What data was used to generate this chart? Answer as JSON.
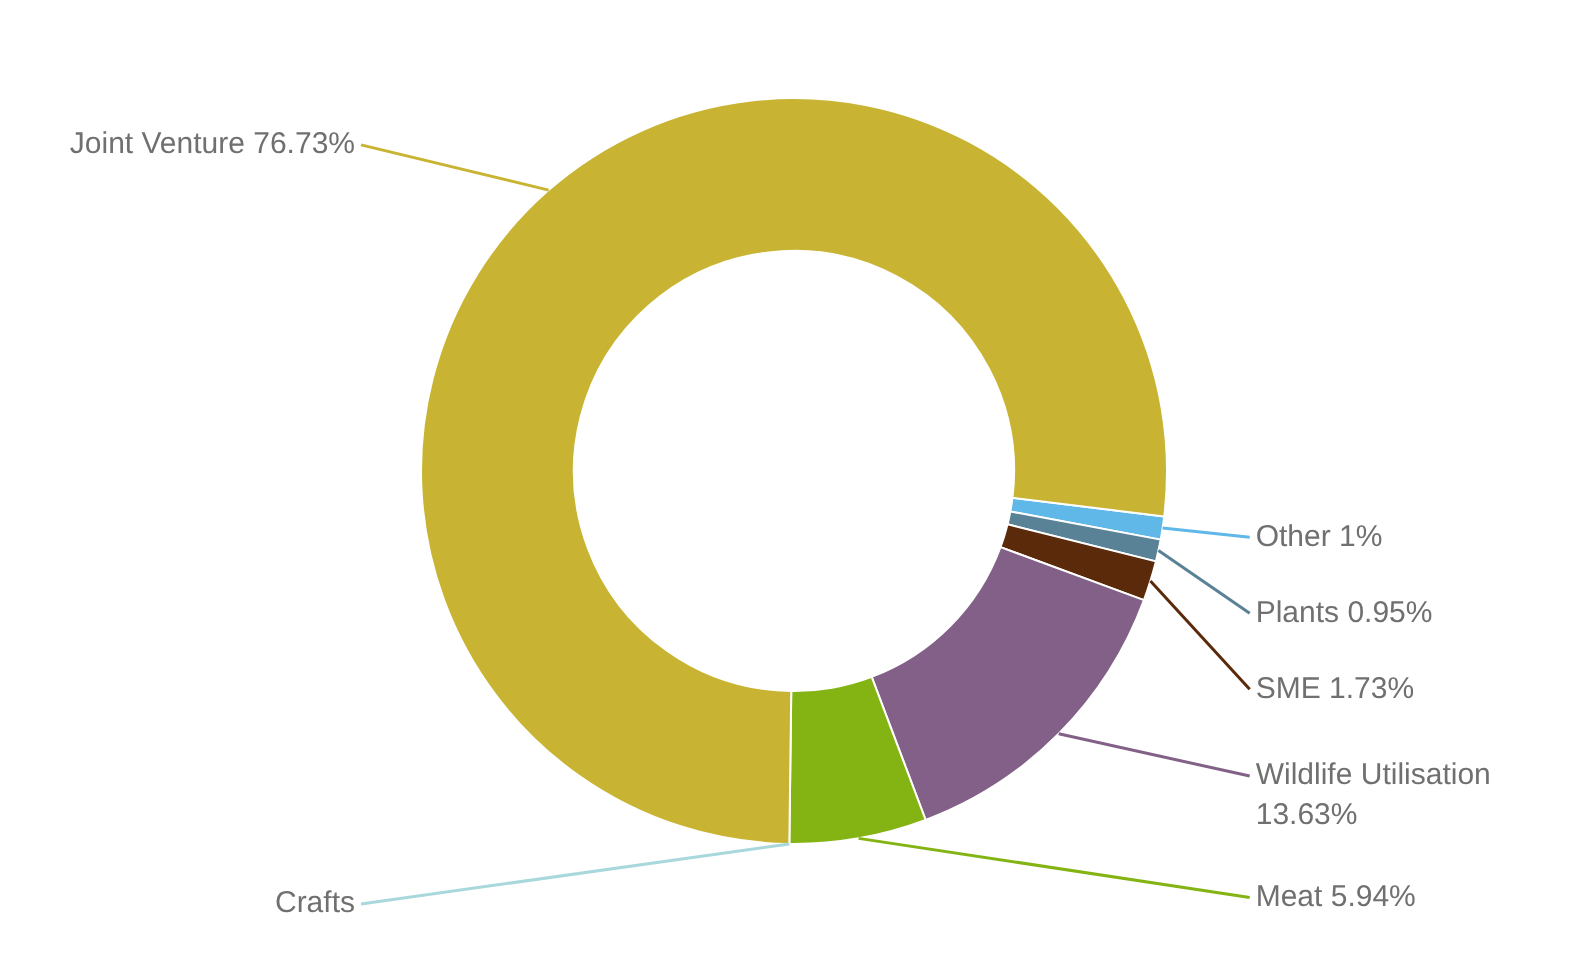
{
  "chart_data": {
    "type": "donut",
    "categories": [
      "Other",
      "Plants",
      "SME",
      "Wildlife Utilisation",
      "Meat",
      "Crafts",
      "Joint Venture"
    ],
    "values": [
      1,
      0.95,
      1.73,
      13.63,
      5.94,
      null,
      76.73
    ],
    "colors": [
      "#5fb8e8",
      "#5a8296",
      "#5a2a0a",
      "#836087",
      "#84b414",
      "#a8d8dc",
      "#c8b432"
    ],
    "value_labels": [
      "1%",
      "0.95%",
      "1.73%",
      "13.63%",
      "5.94%",
      null,
      "76.73%"
    ],
    "legend": false
  }
}
